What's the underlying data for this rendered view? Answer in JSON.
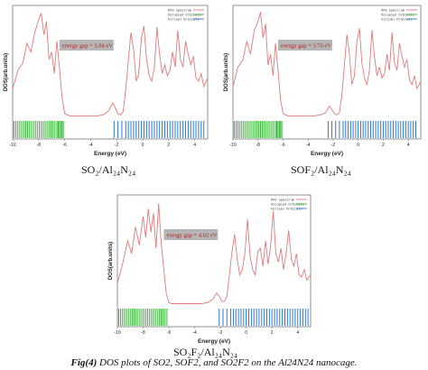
{
  "caption": {
    "label": "Fig(4)",
    "text": " DOS plots of SO2, SOF2, and SO2F2 on the Al24N24 nanocage."
  },
  "colors": {
    "dos": "#e2797a",
    "occupied": "#2fb52f",
    "virtual": "#2b78d9",
    "gap_box": "#b5b5b5",
    "frame": "#777777"
  },
  "chart_data": [
    {
      "type": "line",
      "title": "SO₂/Al₂₄N₂₄",
      "xlabel": "Energy (eV)",
      "ylabel": "DOS(arb.units)",
      "xlim": [
        -10,
        5
      ],
      "xticks": [
        -10,
        -8,
        -6,
        -4,
        -2,
        0,
        2,
        4
      ],
      "ylim": [
        0,
        1
      ],
      "legend": {
        "position": "top-right",
        "entries": [
          "DOS spectrum",
          "Occupied Orbitals",
          "Virtual Orbitals"
        ]
      },
      "annotation": "energy gap = 3.94 eV",
      "series": [
        {
          "name": "DOS spectrum",
          "x": [
            -10,
            -9.6,
            -9.2,
            -8.9,
            -8.6,
            -8.3,
            -8.0,
            -7.8,
            -7.6,
            -7.4,
            -7.2,
            -7.0,
            -6.8,
            -6.6,
            -6.4,
            -6.2,
            -6.0,
            -5.8,
            -5.6,
            -5.4,
            -5.2,
            -5.0,
            -4.5,
            -4.0,
            -3.5,
            -3.0,
            -2.6,
            -2.3,
            -2.1,
            -1.9,
            -1.7,
            -1.5,
            -1.3,
            -1.1,
            -0.9,
            -0.7,
            -0.5,
            -0.3,
            -0.1,
            0.1,
            0.3,
            0.5,
            0.7,
            0.9,
            1.1,
            1.3,
            1.5,
            1.7,
            1.9,
            2.1,
            2.3,
            2.5,
            2.7,
            2.9,
            3.1,
            3.3,
            3.5,
            3.7,
            3.9,
            4.1,
            4.3,
            4.5,
            4.7,
            5.0
          ],
          "y": [
            0.28,
            0.45,
            0.52,
            0.7,
            0.62,
            0.8,
            0.92,
            0.98,
            0.78,
            0.9,
            0.55,
            0.62,
            0.42,
            0.72,
            0.48,
            0.2,
            0.05,
            0.04,
            0.03,
            0.03,
            0.03,
            0.03,
            0.03,
            0.03,
            0.03,
            0.04,
            0.08,
            0.15,
            0.1,
            0.05,
            0.04,
            0.07,
            0.28,
            0.55,
            0.8,
            0.65,
            0.35,
            0.42,
            0.75,
            0.86,
            0.55,
            0.4,
            0.35,
            0.48,
            0.85,
            0.6,
            0.42,
            0.5,
            0.4,
            0.45,
            0.62,
            0.48,
            0.82,
            0.55,
            0.48,
            0.72,
            0.6,
            0.5,
            0.58,
            0.38,
            0.35,
            0.42,
            0.3,
            0.38
          ]
        }
      ],
      "occupied_levels": [
        -9.9,
        -9.75,
        -9.6,
        -9.45,
        -9.3,
        -9.15,
        -9.0,
        -8.85,
        -8.7,
        -8.55,
        -8.4,
        -8.25,
        -8.1,
        -7.95,
        -7.8,
        -7.65,
        -7.5,
        -7.35,
        -7.2,
        -7.05,
        -6.9,
        -6.75,
        -6.6,
        -6.5,
        -6.4,
        -6.3,
        -6.2,
        -6.1
      ],
      "virtual_levels": [
        -2.2,
        -1.9,
        -1.6,
        -1.3,
        -1.1,
        -0.9,
        -0.7,
        -0.5,
        -0.3,
        -0.1,
        0.1,
        0.3,
        0.5,
        0.7,
        0.9,
        1.1,
        1.3,
        1.5,
        1.7,
        1.9,
        2.1,
        2.3,
        2.5,
        2.7,
        2.9,
        3.1,
        3.3,
        3.5,
        3.7,
        3.9,
        4.1,
        4.3,
        4.5,
        4.7
      ]
    },
    {
      "type": "line",
      "title": "SOF₂/Al₂₄N₂₄",
      "xlabel": "Energy (eV)",
      "ylabel": "DOS(arb.units)",
      "xlim": [
        -10,
        5
      ],
      "xticks": [
        -10,
        -8,
        -6,
        -4,
        -2,
        0,
        2,
        4
      ],
      "ylim": [
        0,
        1
      ],
      "legend": {
        "position": "top-right",
        "entries": [
          "DOS spectrum",
          "Occupied Orbitals",
          "Virtual Orbitals"
        ]
      },
      "annotation": "energy gap = 3.70 eV",
      "series": [
        {
          "name": "DOS spectrum",
          "x": [
            -10,
            -9.6,
            -9.2,
            -8.9,
            -8.6,
            -8.3,
            -8.0,
            -7.8,
            -7.6,
            -7.4,
            -7.2,
            -7.0,
            -6.8,
            -6.6,
            -6.4,
            -6.2,
            -6.0,
            -5.8,
            -5.6,
            -5.4,
            -5.2,
            -5.0,
            -4.5,
            -4.0,
            -3.5,
            -3.0,
            -2.6,
            -2.3,
            -2.1,
            -1.9,
            -1.7,
            -1.5,
            -1.3,
            -1.1,
            -0.9,
            -0.7,
            -0.5,
            -0.3,
            -0.1,
            0.1,
            0.3,
            0.5,
            0.7,
            0.9,
            1.1,
            1.3,
            1.5,
            1.7,
            1.9,
            2.1,
            2.3,
            2.5,
            2.7,
            2.9,
            3.1,
            3.3,
            3.5,
            3.7,
            3.9,
            4.1,
            4.3,
            4.5,
            4.7,
            5.0
          ],
          "y": [
            0.3,
            0.48,
            0.55,
            0.72,
            0.6,
            0.82,
            0.9,
            0.99,
            0.75,
            0.88,
            0.5,
            0.6,
            0.4,
            0.7,
            0.45,
            0.18,
            0.05,
            0.04,
            0.03,
            0.03,
            0.03,
            0.03,
            0.03,
            0.03,
            0.03,
            0.04,
            0.06,
            0.12,
            0.09,
            0.05,
            0.04,
            0.06,
            0.22,
            0.5,
            0.78,
            0.6,
            0.32,
            0.4,
            0.72,
            0.84,
            0.52,
            0.38,
            0.32,
            0.45,
            0.82,
            0.58,
            0.4,
            0.48,
            0.38,
            0.42,
            0.6,
            0.45,
            0.8,
            0.52,
            0.45,
            0.7,
            0.58,
            0.48,
            0.55,
            0.36,
            0.32,
            0.4,
            0.28,
            0.35
          ]
        }
      ],
      "occupied_levels": [
        -9.9,
        -9.75,
        -9.6,
        -9.45,
        -9.3,
        -9.15,
        -9.0,
        -8.85,
        -8.7,
        -8.55,
        -8.4,
        -8.25,
        -8.1,
        -7.95,
        -7.8,
        -7.65,
        -7.5,
        -7.35,
        -7.2,
        -7.05,
        -6.9,
        -6.75,
        -6.6,
        -6.5,
        -6.4,
        -6.3,
        -6.2,
        -6.1
      ],
      "virtual_levels": [
        -2.4,
        -2.1,
        -1.8,
        -1.5,
        -1.2,
        -1.0,
        -0.8,
        -0.6,
        -0.4,
        -0.2,
        0.0,
        0.2,
        0.4,
        0.6,
        0.8,
        1.0,
        1.2,
        1.4,
        1.6,
        1.8,
        2.0,
        2.2,
        2.4,
        2.6,
        2.8,
        3.0,
        3.2,
        3.4,
        3.6,
        3.8,
        4.0,
        4.2,
        4.4,
        4.6
      ]
    },
    {
      "type": "line",
      "title": "SO₂F₂/Al₂₄N₂₄",
      "xlabel": "Energy (eV)",
      "ylabel": "DOS(arb.units)",
      "xlim": [
        -10,
        5
      ],
      "xticks": [
        -10,
        -8,
        -6,
        -4,
        -2,
        0,
        2,
        4
      ],
      "ylim": [
        0,
        1
      ],
      "legend": {
        "position": "top-right",
        "entries": [
          "DOS spectrum",
          "Occupied Orbitals",
          "Virtual Orbitals"
        ]
      },
      "annotation": "energy gap = 4.02 eV",
      "series": [
        {
          "name": "DOS spectrum",
          "x": [
            -10,
            -9.6,
            -9.2,
            -8.9,
            -8.6,
            -8.3,
            -8.0,
            -7.8,
            -7.6,
            -7.4,
            -7.2,
            -7.0,
            -6.8,
            -6.6,
            -6.4,
            -6.2,
            -6.0,
            -5.8,
            -5.6,
            -5.4,
            -5.2,
            -5.0,
            -4.5,
            -4.0,
            -3.5,
            -3.0,
            -2.6,
            -2.3,
            -2.1,
            -1.9,
            -1.7,
            -1.5,
            -1.3,
            -1.1,
            -0.9,
            -0.7,
            -0.5,
            -0.3,
            -0.1,
            0.1,
            0.3,
            0.5,
            0.7,
            0.9,
            1.1,
            1.3,
            1.5,
            1.7,
            1.9,
            2.1,
            2.3,
            2.5,
            2.7,
            2.9,
            3.1,
            3.3,
            3.5,
            3.7,
            3.9,
            4.1,
            4.3,
            4.5,
            4.7,
            5.0
          ],
          "y": [
            0.22,
            0.4,
            0.62,
            0.5,
            0.75,
            0.58,
            0.85,
            0.65,
            0.92,
            0.7,
            0.88,
            0.55,
            0.97,
            0.6,
            0.35,
            0.12,
            0.04,
            0.03,
            0.03,
            0.03,
            0.03,
            0.03,
            0.03,
            0.03,
            0.03,
            0.04,
            0.07,
            0.13,
            0.1,
            0.05,
            0.05,
            0.1,
            0.3,
            0.52,
            0.68,
            0.45,
            0.3,
            0.35,
            0.5,
            0.82,
            0.48,
            0.35,
            0.3,
            0.52,
            0.55,
            0.38,
            0.62,
            0.4,
            0.58,
            0.9,
            0.5,
            0.42,
            0.55,
            0.35,
            0.5,
            0.72,
            0.45,
            0.38,
            0.5,
            0.3,
            0.28,
            0.35,
            0.25,
            0.3
          ]
        }
      ],
      "occupied_levels": [
        -9.9,
        -9.75,
        -9.6,
        -9.45,
        -9.3,
        -9.15,
        -9.0,
        -8.85,
        -8.7,
        -8.55,
        -8.4,
        -8.25,
        -8.1,
        -7.95,
        -7.8,
        -7.65,
        -7.5,
        -7.35,
        -7.2,
        -7.05,
        -6.9,
        -6.75,
        -6.6,
        -6.45,
        -6.3,
        -6.15
      ],
      "virtual_levels": [
        -2.1,
        -1.8,
        -1.5,
        -1.2,
        -1.0,
        -0.8,
        -0.6,
        -0.4,
        -0.2,
        0.0,
        0.2,
        0.4,
        0.6,
        0.8,
        1.0,
        1.2,
        1.4,
        1.6,
        1.8,
        2.0,
        2.2,
        2.4,
        2.6,
        2.8,
        3.0,
        3.2,
        3.4,
        3.6,
        3.8,
        4.0,
        4.2,
        4.4,
        4.6,
        4.8
      ]
    }
  ]
}
